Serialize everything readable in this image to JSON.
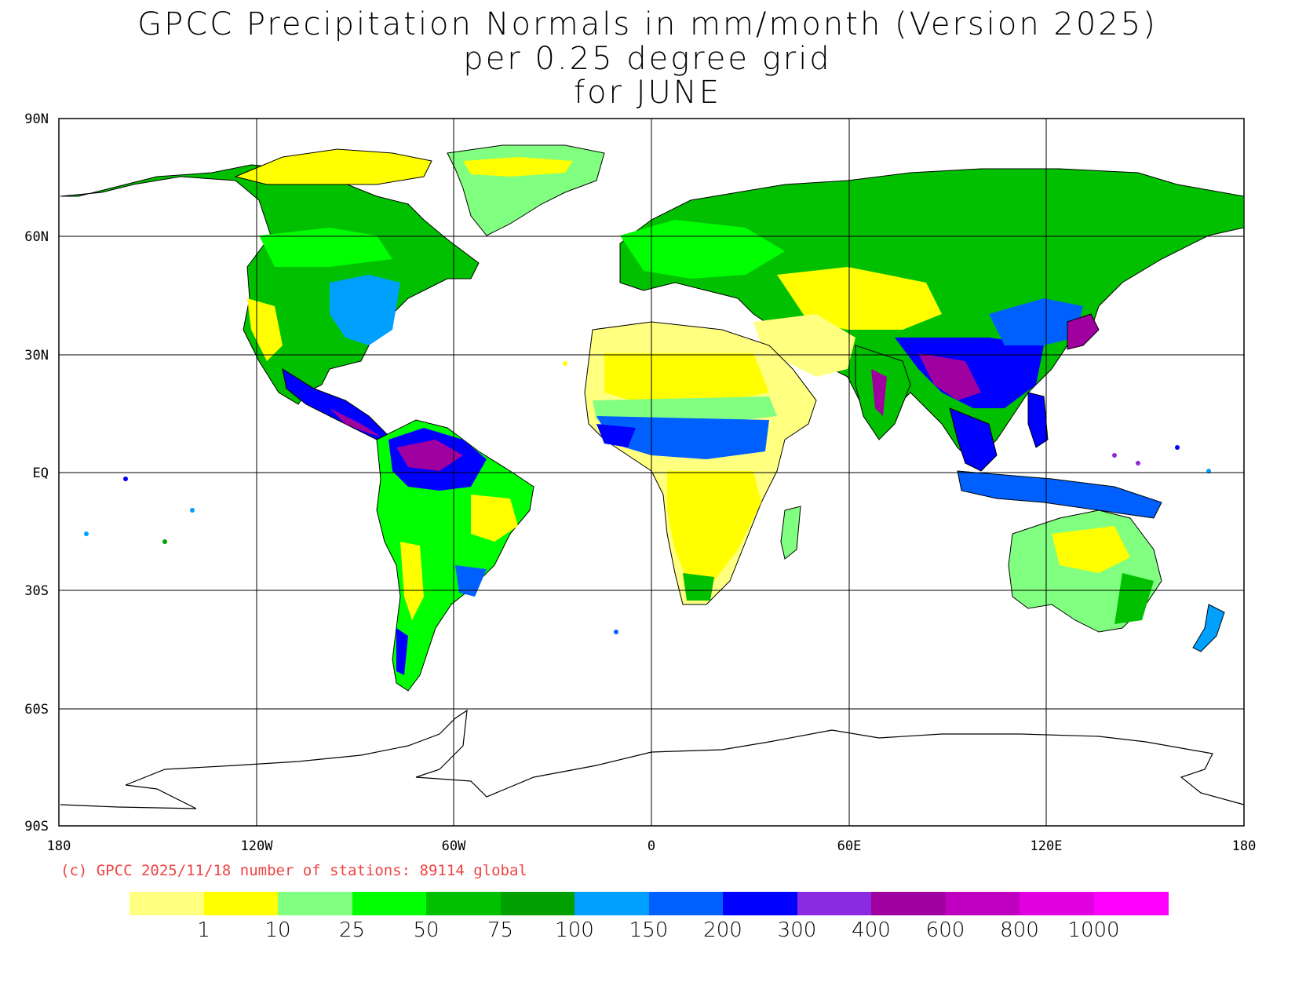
{
  "title": {
    "line1": "GPCC Precipitation Normals in mm/month (Version 2025)",
    "line2": "per 0.25 degree grid",
    "line3": "for JUNE"
  },
  "axes": {
    "lat_labels": [
      "90N",
      "60N",
      "30N",
      "EQ",
      "30S",
      "60S",
      "90S"
    ],
    "lon_labels": [
      "180",
      "120W",
      "60W",
      "0",
      "60E",
      "120E",
      "180"
    ]
  },
  "credit": "(c) GPCC 2025/11/18 number of stations: 89114 global",
  "legend": {
    "colors": [
      "#ffff80",
      "#ffff00",
      "#80ff80",
      "#00ff00",
      "#00c000",
      "#00a000",
      "#00a0ff",
      "#0060ff",
      "#0000ff",
      "#8a2be2",
      "#a000a0",
      "#c000c0",
      "#e000e0",
      "#ff00ff"
    ],
    "labels": [
      "1",
      "10",
      "25",
      "50",
      "75",
      "100",
      "150",
      "200",
      "300",
      "400",
      "600",
      "800",
      "1000"
    ]
  }
}
